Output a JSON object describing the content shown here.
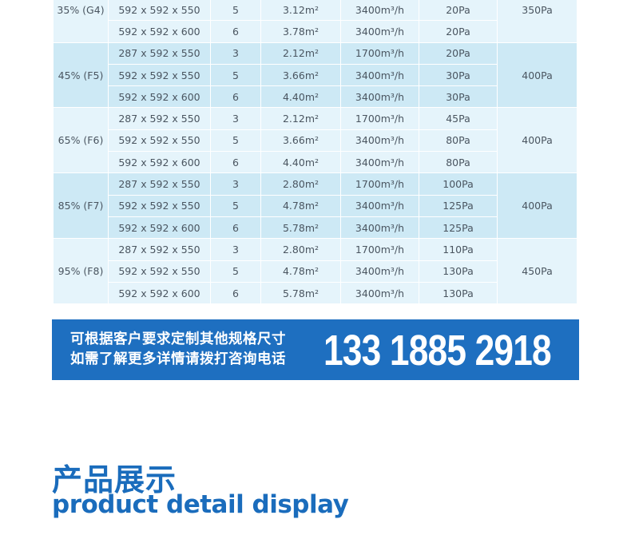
{
  "spec_table": {
    "groups": [
      {
        "efficiency": "35% (G4)",
        "final_resistance": "350Pa",
        "rows": [
          [
            "592 x 592 x 550",
            "5",
            "3.12m²",
            "3400m³/h",
            "20Pa"
          ],
          [
            "592 x 592 x 600",
            "6",
            "3.78m²",
            "3400m³/h",
            "20Pa"
          ]
        ]
      },
      {
        "efficiency": "45% (F5)",
        "final_resistance": "400Pa",
        "rows": [
          [
            "287 x 592 x 550",
            "3",
            "2.12m²",
            "1700m³/h",
            "20Pa"
          ],
          [
            "592 x 592 x 550",
            "5",
            "3.66m²",
            "3400m³/h",
            "30Pa"
          ],
          [
            "592 x 592 x 600",
            "6",
            "4.40m²",
            "3400m³/h",
            "30Pa"
          ]
        ]
      },
      {
        "efficiency": "65% (F6)",
        "final_resistance": "400Pa",
        "rows": [
          [
            "287 x 592 x 550",
            "3",
            "2.12m²",
            "1700m³/h",
            "45Pa"
          ],
          [
            "592 x 592 x 550",
            "5",
            "3.66m²",
            "3400m³/h",
            "80Pa"
          ],
          [
            "592 x 592 x 600",
            "6",
            "4.40m²",
            "3400m³/h",
            "80Pa"
          ]
        ]
      },
      {
        "efficiency": "85% (F7)",
        "final_resistance": "400Pa",
        "rows": [
          [
            "287 x 592 x 550",
            "3",
            "2.80m²",
            "1700m³/h",
            "100Pa"
          ],
          [
            "592 x 592 x 550",
            "5",
            "4.78m²",
            "3400m³/h",
            "125Pa"
          ],
          [
            "592 x 592 x 600",
            "6",
            "5.78m²",
            "3400m³/h",
            "125Pa"
          ]
        ]
      },
      {
        "efficiency": "95% (F8)",
        "final_resistance": "450Pa",
        "rows": [
          [
            "287 x 592 x 550",
            "3",
            "2.80m²",
            "1700m³/h",
            "110Pa"
          ],
          [
            "592 x 592 x 550",
            "5",
            "4.78m²",
            "3400m³/h",
            "130Pa"
          ],
          [
            "592 x 592 x 600",
            "6",
            "5.78m²",
            "3400m³/h",
            "130Pa"
          ]
        ]
      }
    ]
  },
  "banner": {
    "line1": "可根据客户要求定制其他规格尺寸",
    "line2": "如需了解更多详情请拨打咨询电话",
    "phone": "133 1885 2918",
    "color": "#1e6fc0"
  },
  "section": {
    "title_cn": "产品展示",
    "title_en": "product detail display"
  }
}
